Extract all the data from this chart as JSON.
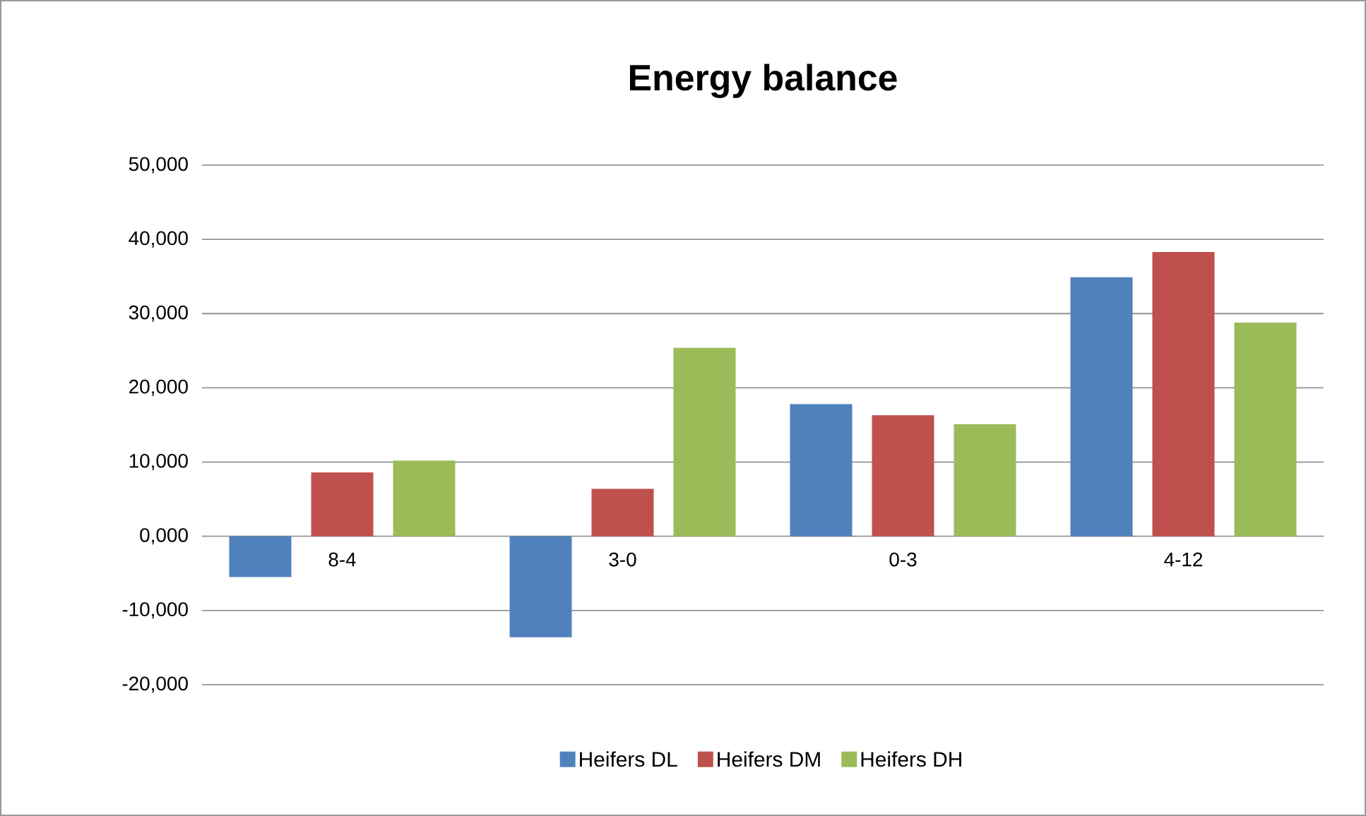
{
  "chart_data": {
    "type": "bar",
    "title": "Energy balance",
    "categories": [
      "8-4",
      "3-0",
      "0-3",
      "4-12"
    ],
    "series": [
      {
        "name": "Heifers DL",
        "color": "#4f81bd",
        "values": [
          -5500,
          -13600,
          17800,
          34900
        ]
      },
      {
        "name": "Heifers DM",
        "color": "#c0504d",
        "values": [
          8600,
          6400,
          16300,
          38300
        ]
      },
      {
        "name": "Heifers DH",
        "color": "#9bbb59",
        "values": [
          10200,
          25400,
          15100,
          28800
        ]
      }
    ],
    "ylim": [
      -20000,
      50000
    ],
    "yticks": [
      {
        "value": -20000,
        "label": "-20,000"
      },
      {
        "value": -10000,
        "label": "-10,000"
      },
      {
        "value": 0,
        "label": "0,000"
      },
      {
        "value": 10000,
        "label": "10,000"
      },
      {
        "value": 20000,
        "label": "20,000"
      },
      {
        "value": 30000,
        "label": "30,000"
      },
      {
        "value": 40000,
        "label": "40,000"
      },
      {
        "value": 50000,
        "label": "50,000"
      }
    ],
    "grid": "y",
    "legend": "bottom"
  }
}
